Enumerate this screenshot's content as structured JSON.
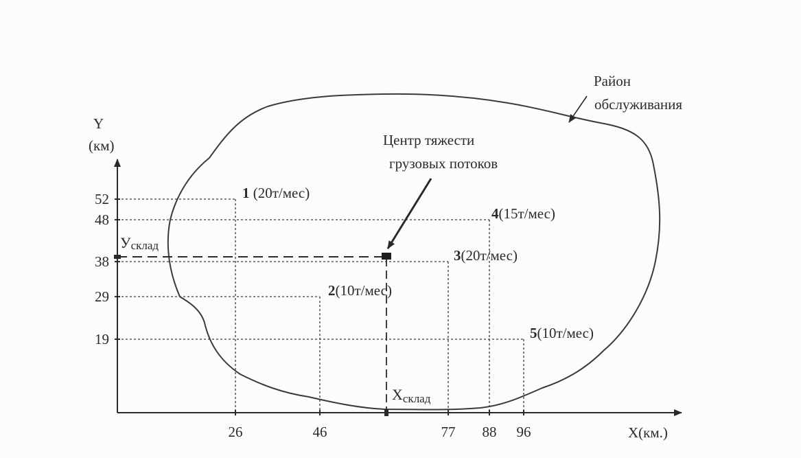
{
  "axes": {
    "y_label": "Y",
    "y_unit": "(км)",
    "x_label": "X(км.)",
    "x_ticks": [
      "26",
      "46",
      "77",
      "88",
      "96"
    ],
    "y_ticks": [
      "52",
      "48",
      "38",
      "29",
      "19"
    ]
  },
  "points": [
    {
      "num": "1",
      "text": " (20т/мес)",
      "x": 26,
      "y": 52
    },
    {
      "num": "2",
      "text": "(10т/мес)",
      "x": 46,
      "y": 29
    },
    {
      "num": "3",
      "text": "(20т/мес)",
      "x": 77,
      "y": 38
    },
    {
      "num": "4",
      "text": "(15т/мес)",
      "x": 88,
      "y": 48
    },
    {
      "num": "5",
      "text": "(10т/мес)",
      "x": 96,
      "y": 19
    }
  ],
  "center": {
    "x_main": "X",
    "x_sub": "склад",
    "y_main": "У",
    "y_sub": "склад"
  },
  "annotations": {
    "center_line1": "Центр тяжести",
    "center_line2": "грузовых потоков",
    "region_line1": "Район",
    "region_line2": "обслуживания"
  },
  "colors": {
    "ink": "#2a2a2a",
    "paper": "#fcfcfa"
  }
}
